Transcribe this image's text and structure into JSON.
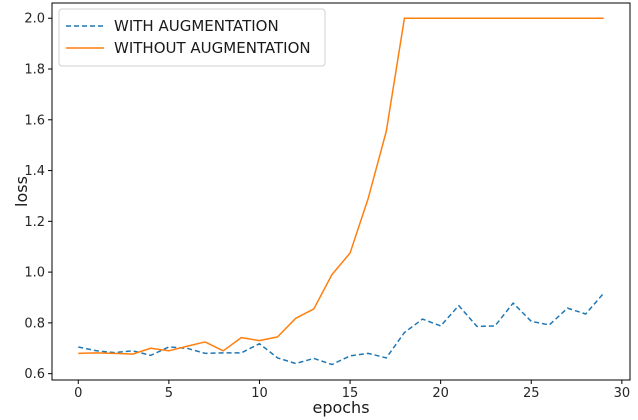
{
  "chart_data": {
    "type": "line",
    "xlabel": "epochs",
    "ylabel": "loss",
    "xlim": [
      -1.45,
      30.45
    ],
    "ylim": [
      0.575,
      2.06
    ],
    "xticks": [
      0,
      5,
      10,
      15,
      20,
      25,
      30
    ],
    "yticks": [
      0.6,
      0.8,
      1.0,
      1.2,
      1.4,
      1.6,
      1.8,
      2.0
    ],
    "xtick_labels": [
      "0",
      "5",
      "10",
      "15",
      "20",
      "25",
      "30"
    ],
    "ytick_labels": [
      "0.6",
      "0.8",
      "1.0",
      "1.2",
      "1.4",
      "1.6",
      "1.8",
      "2.0"
    ],
    "grid": false,
    "legend_position": "top-left",
    "x": [
      0,
      1,
      2,
      3,
      4,
      5,
      6,
      7,
      8,
      9,
      10,
      11,
      12,
      13,
      14,
      15,
      16,
      17,
      18,
      19,
      20,
      21,
      22,
      23,
      24,
      25,
      26,
      27,
      28,
      29
    ],
    "series": [
      {
        "name": "WITH AUGMENTATION",
        "color": "#1f77b4",
        "linestyle": "dashed",
        "values": [
          0.705,
          0.69,
          0.683,
          0.69,
          0.672,
          0.705,
          0.7,
          0.68,
          0.682,
          0.682,
          0.718,
          0.662,
          0.64,
          0.66,
          0.636,
          0.67,
          0.68,
          0.662,
          0.762,
          0.815,
          0.788,
          0.868,
          0.786,
          0.788,
          0.878,
          0.806,
          0.792,
          0.858,
          0.835,
          0.917
        ]
      },
      {
        "name": "WITHOUT AUGMENTATION",
        "color": "#ff7f0e",
        "linestyle": "solid",
        "values": [
          0.68,
          0.682,
          0.68,
          0.677,
          0.7,
          0.69,
          0.708,
          0.725,
          0.69,
          0.742,
          0.73,
          0.745,
          0.818,
          0.855,
          0.99,
          1.075,
          1.29,
          1.555,
          2.0,
          2.0,
          2.0,
          2.0,
          2.0,
          2.0,
          2.0,
          2.0,
          2.0,
          2.0,
          2.0,
          2.0
        ]
      }
    ]
  }
}
